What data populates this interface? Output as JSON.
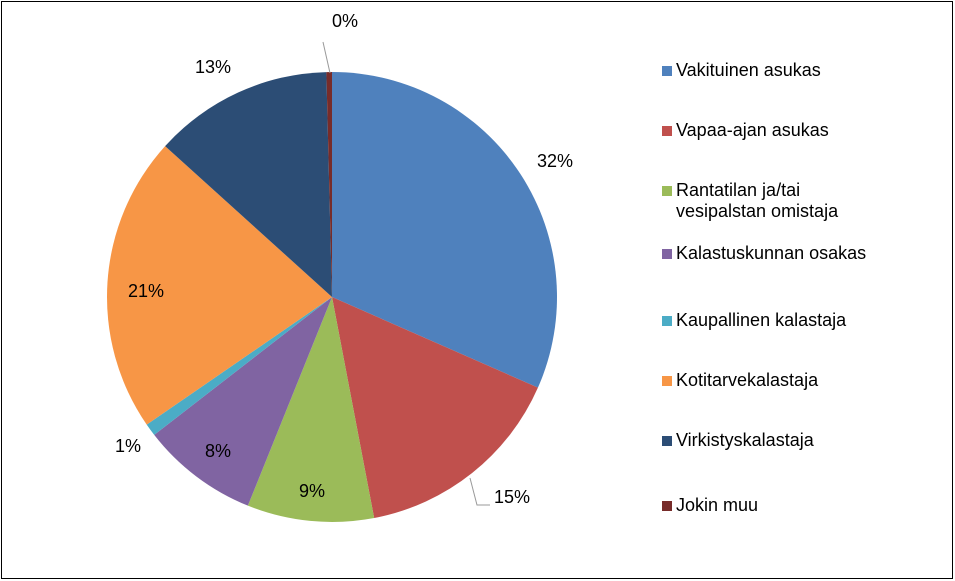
{
  "chart_data": {
    "type": "pie",
    "categories": [
      "Vakituinen asukas",
      "Vapaa-ajan asukas",
      "Rantatilan ja/tai\nvesipalstan omistaja",
      "Kalastuskunnan osakas",
      "Kaupallinen kalastaja",
      "Kotitarvekalastaja",
      "Virkistyskalastaja",
      "Jokin muu"
    ],
    "values": [
      31.6,
      15.4,
      9.1,
      8.4,
      0.9,
      21.3,
      12.9,
      0.4
    ],
    "value_labels": [
      "32%",
      "15%",
      "9%",
      "8%",
      "1%",
      "21%",
      "13%",
      "0%"
    ],
    "colors": [
      "#4f81bd",
      "#c0504d",
      "#9bbb59",
      "#8064a2",
      "#4bacc6",
      "#f79646",
      "#2c4d75",
      "#772c2a"
    ],
    "legend": "right"
  }
}
